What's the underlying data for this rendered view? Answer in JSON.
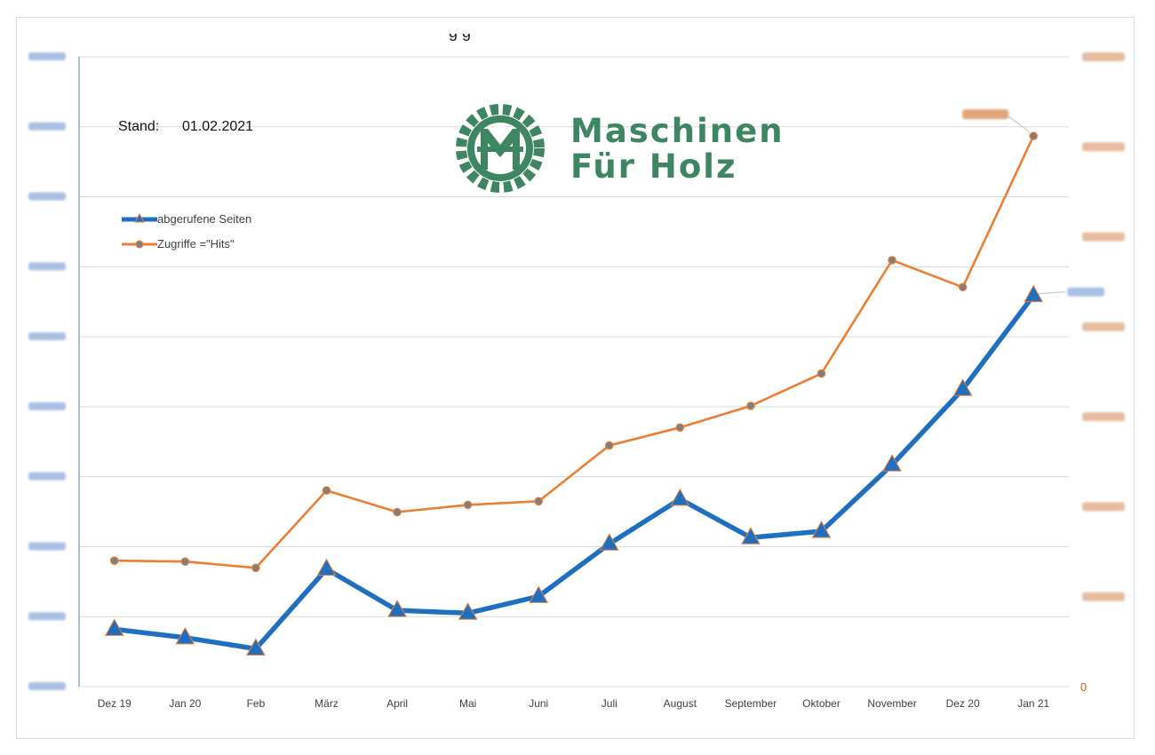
{
  "chart_data": {
    "type": "line",
    "categories": [
      "Dez 19",
      "Jan 20",
      "Feb",
      "März",
      "April",
      "Mai",
      "Juni",
      "Juli",
      "August",
      "September",
      "Oktober",
      "November",
      "Dez 20",
      "Jan 21"
    ],
    "series": [
      {
        "name": "abgerufene Seiten",
        "axis": "left",
        "color": "#1f6fc0",
        "marker": "triangle",
        "values": [
          20200,
          19000,
          17400,
          28800,
          22900,
          22500,
          24900,
          32400,
          38800,
          33300,
          34200,
          43700,
          54500,
          67900
        ]
      },
      {
        "name": "Zugriffe =\"Hits\"",
        "axis": "right",
        "color": "#ed7d31",
        "marker": "circle",
        "values": [
          70000,
          69500,
          66000,
          109000,
          97000,
          101000,
          103000,
          134000,
          144000,
          156000,
          174000,
          237000,
          222000,
          306000
        ]
      }
    ],
    "y_left": {
      "range": [
        12000,
        102000
      ],
      "step": 10000,
      "blurred_labels": true
    },
    "y_right": {
      "range": [
        0,
        350000
      ],
      "step": 50000,
      "zero_label": "0",
      "blurred_labels": true
    },
    "grid": true,
    "legend_position": "left"
  },
  "annotations": {
    "stand_label": "Stand:",
    "stand_date": "01.02.2021",
    "title_fragment": "g  g"
  },
  "logo": {
    "line1": "Maschinen",
    "line2": "Für Holz",
    "color": "#3d8563"
  },
  "colors": {
    "grid": "#d9d9d9",
    "left_axis_line": "#5b9bd5",
    "left_labels_blur": "#4472c4",
    "right_labels_blur": "#c55a11",
    "axis_text": "#404040"
  }
}
